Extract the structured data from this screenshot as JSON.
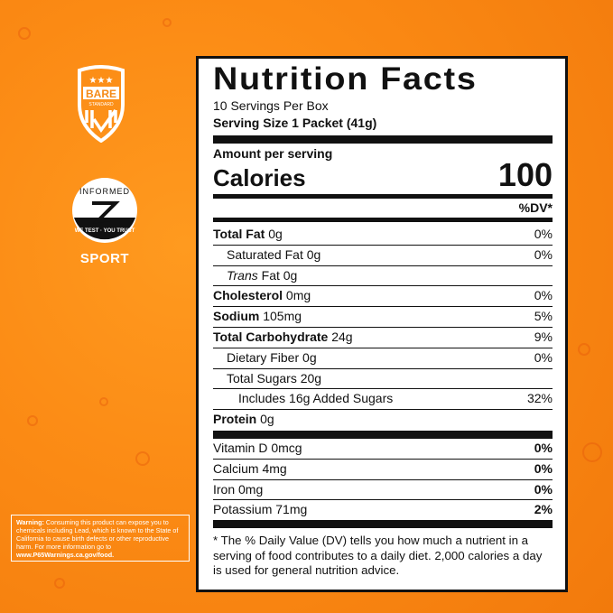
{
  "background": {
    "color": "#fb8a14"
  },
  "logos": {
    "bare_standard": "BARE STANDARD",
    "informed": "INFORMED",
    "informed_ring": "WE TEST · YOU TRUST",
    "sport": "SPORT"
  },
  "warning": {
    "label": "Warning:",
    "text": "Consuming this product can expose you to chemicals including Lead, which is known to the State of California to cause birth defects or other reproductive harm. For more information go to",
    "link": "www.P65Warnings.ca.gov/food."
  },
  "label": {
    "title": "Nutrition Facts",
    "servings": "10 Servings Per Box",
    "serving_size": "Serving Size 1 Packet (41g)",
    "amount_per_serving": "Amount per serving",
    "calories_label": "Calories",
    "calories_value": "100",
    "dv_header": "%DV*",
    "nutrients": [
      {
        "name": "Total Fat",
        "amount": "0g",
        "dv": "0%",
        "bold": true,
        "indent": 0
      },
      {
        "name": "Saturated Fat",
        "amount": "0g",
        "dv": "0%",
        "bold": false,
        "indent": 1
      },
      {
        "name": "Trans",
        "amount": "Fat 0g",
        "dv": "",
        "bold": false,
        "indent": 1,
        "italic": true
      },
      {
        "name": "Cholesterol",
        "amount": "0mg",
        "dv": "0%",
        "bold": true,
        "indent": 0
      },
      {
        "name": "Sodium",
        "amount": "105mg",
        "dv": "5%",
        "bold": true,
        "indent": 0
      },
      {
        "name": "Total Carbohydrate",
        "amount": "24g",
        "dv": "9%",
        "bold": true,
        "indent": 0
      },
      {
        "name": "Dietary Fiber",
        "amount": "0g",
        "dv": "0%",
        "bold": false,
        "indent": 1
      },
      {
        "name": "Total Sugars",
        "amount": "20g",
        "dv": "",
        "bold": false,
        "indent": 1
      },
      {
        "name": "Includes 16g Added Sugars",
        "amount": "",
        "dv": "32%",
        "bold": false,
        "indent": 2
      },
      {
        "name": "Protein",
        "amount": "0g",
        "dv": "",
        "bold": true,
        "indent": 0
      }
    ],
    "vitamins": [
      {
        "name": "Vitamin D 0mcg",
        "dv": "0%"
      },
      {
        "name": "Calcium 4mg",
        "dv": "0%"
      },
      {
        "name": "Iron 0mg",
        "dv": "0%"
      },
      {
        "name": "Potassium 71mg",
        "dv": "2%"
      }
    ],
    "footnote": "* The % Daily Value (DV) tells you how much a nutrient in a serving of food contributes to a daily diet. 2,000 calories a day is used for general nutrition advice."
  }
}
